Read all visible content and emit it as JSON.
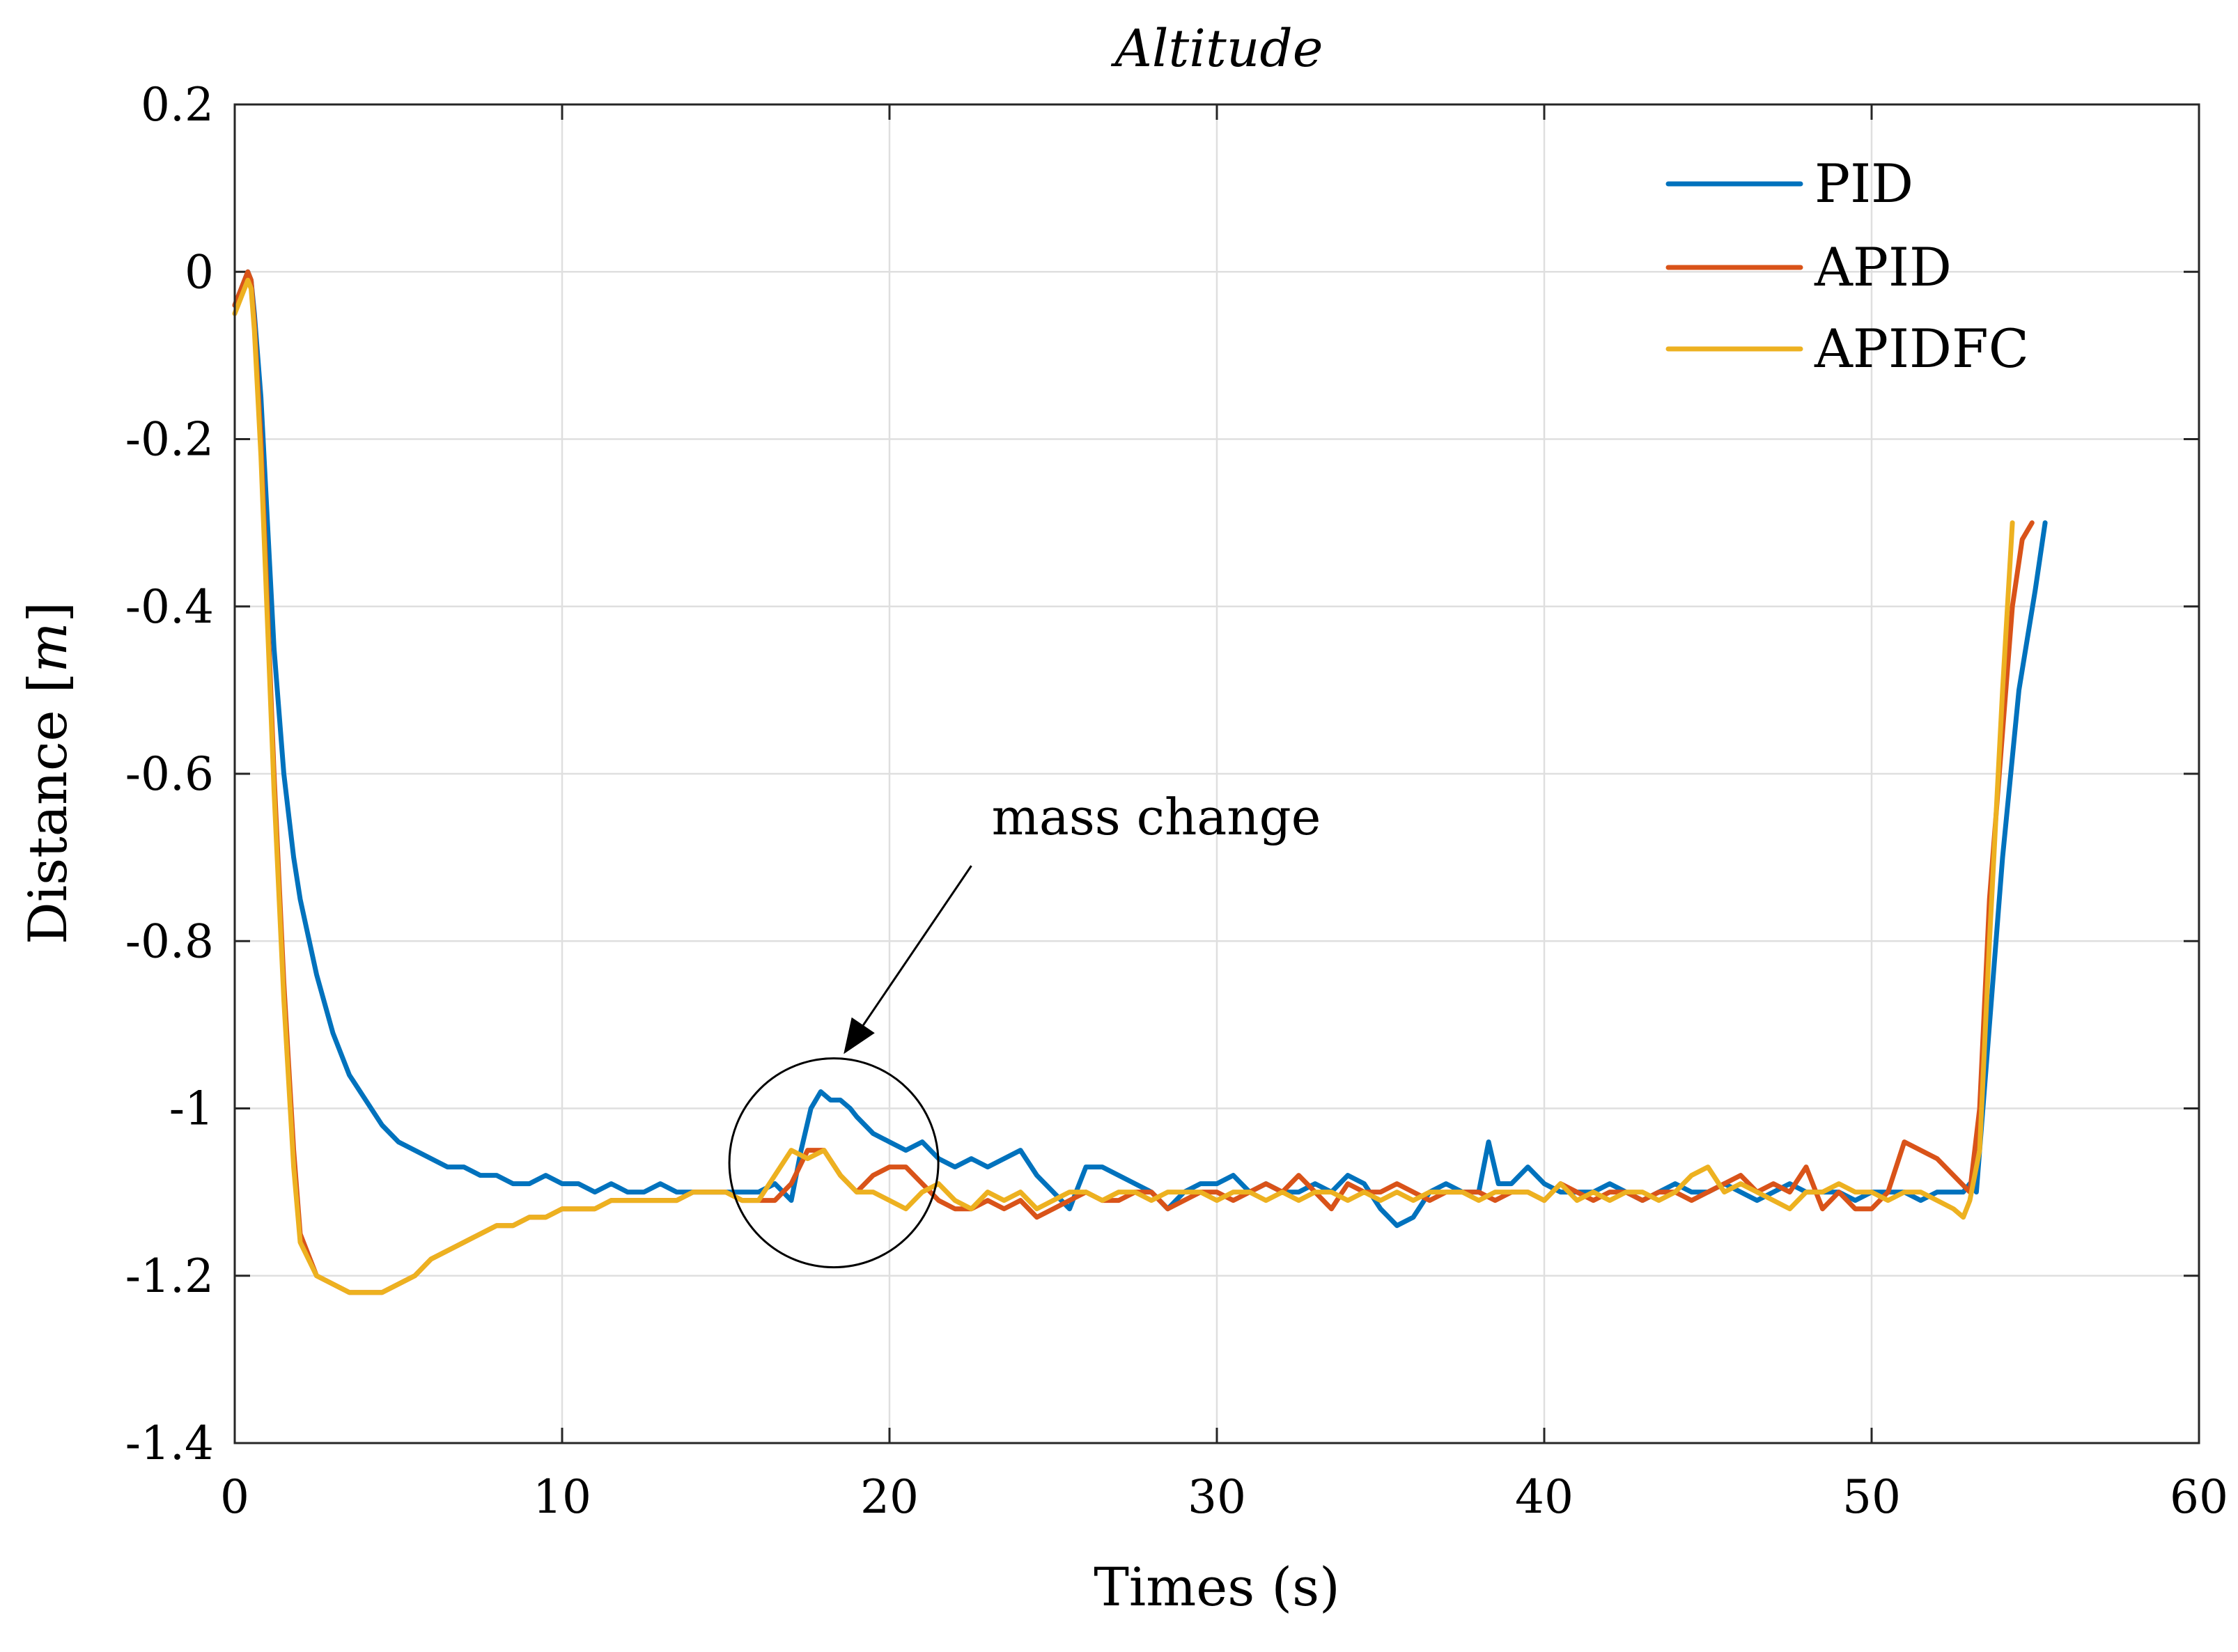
{
  "chart_data": {
    "type": "line",
    "title": "Altitude",
    "xlabel": "Times (s)",
    "ylabel_main": "Distance [",
    "ylabel_unit": "m",
    "ylabel_close": "]",
    "xlim": [
      0,
      60
    ],
    "ylim": [
      -1.4,
      0.2
    ],
    "xticks": [
      0,
      10,
      20,
      30,
      40,
      50,
      60
    ],
    "yticks": [
      0.2,
      0,
      -0.2,
      -0.4,
      -0.6,
      -0.8,
      -1,
      -1.2,
      -1.4
    ],
    "xtick_labels": [
      "0",
      "10",
      "20",
      "30",
      "40",
      "50",
      "60"
    ],
    "ytick_labels": [
      "0.2",
      "0",
      "-0.2",
      "-0.4",
      "-0.6",
      "-0.8",
      "-1",
      "-1.2",
      "-1.4"
    ],
    "grid": true,
    "legend_position": "top-right",
    "annotation": {
      "text": "mass change",
      "circle_center": [
        18.3,
        -1.065
      ],
      "arrow_tail": [
        22.5,
        -0.71
      ],
      "arrow_head": [
        18.6,
        -0.935
      ]
    },
    "series": [
      {
        "name": "PID",
        "color": "#0072BD",
        "x": [
          0,
          0.2,
          0.4,
          0.5,
          0.6,
          0.8,
          1.0,
          1.2,
          1.5,
          1.8,
          2.0,
          2.5,
          3.0,
          3.5,
          4.0,
          4.5,
          5.0,
          5.5,
          6.0,
          6.5,
          7.0,
          7.5,
          8.0,
          8.5,
          9.0,
          9.5,
          10.0,
          10.5,
          11.0,
          11.5,
          12.0,
          12.5,
          13.0,
          13.5,
          14.0,
          14.5,
          15.0,
          15.5,
          16.0,
          16.5,
          17.0,
          17.3,
          17.6,
          17.9,
          18.2,
          18.5,
          18.8,
          19.0,
          19.5,
          20.0,
          20.5,
          21.0,
          21.5,
          22.0,
          22.5,
          23.0,
          23.5,
          24.0,
          24.5,
          25.0,
          25.5,
          26.0,
          26.5,
          27.0,
          27.5,
          28.0,
          28.5,
          29.0,
          29.5,
          30.0,
          30.5,
          31.0,
          31.5,
          32.0,
          32.5,
          33.0,
          33.5,
          34.0,
          34.5,
          35.0,
          35.5,
          36.0,
          36.5,
          37.0,
          37.5,
          38.0,
          38.3,
          38.6,
          39.0,
          39.5,
          40.0,
          40.5,
          41.0,
          41.5,
          42.0,
          42.5,
          43.0,
          43.5,
          44.0,
          44.5,
          45.0,
          45.5,
          46.0,
          46.5,
          47.0,
          47.5,
          48.0,
          48.5,
          49.0,
          49.5,
          50.0,
          50.5,
          51.0,
          51.5,
          52.0,
          52.5,
          52.8,
          53.0,
          53.2,
          53.5,
          54.0,
          54.5,
          55.0,
          55.3
        ],
        "y": [
          -0.04,
          -0.02,
          0.0,
          -0.01,
          -0.05,
          -0.15,
          -0.3,
          -0.45,
          -0.6,
          -0.7,
          -0.75,
          -0.84,
          -0.91,
          -0.96,
          -0.99,
          -1.02,
          -1.04,
          -1.05,
          -1.06,
          -1.07,
          -1.07,
          -1.08,
          -1.08,
          -1.09,
          -1.09,
          -1.08,
          -1.09,
          -1.09,
          -1.1,
          -1.09,
          -1.1,
          -1.1,
          -1.09,
          -1.1,
          -1.1,
          -1.1,
          -1.1,
          -1.1,
          -1.1,
          -1.09,
          -1.11,
          -1.05,
          -1.0,
          -0.98,
          -0.99,
          -0.99,
          -1.0,
          -1.01,
          -1.03,
          -1.04,
          -1.05,
          -1.04,
          -1.06,
          -1.07,
          -1.06,
          -1.07,
          -1.06,
          -1.05,
          -1.08,
          -1.1,
          -1.12,
          -1.07,
          -1.07,
          -1.08,
          -1.09,
          -1.1,
          -1.12,
          -1.1,
          -1.09,
          -1.09,
          -1.08,
          -1.1,
          -1.09,
          -1.1,
          -1.1,
          -1.09,
          -1.1,
          -1.08,
          -1.09,
          -1.12,
          -1.14,
          -1.13,
          -1.1,
          -1.09,
          -1.1,
          -1.1,
          -1.04,
          -1.09,
          -1.09,
          -1.07,
          -1.09,
          -1.1,
          -1.1,
          -1.1,
          -1.09,
          -1.1,
          -1.11,
          -1.1,
          -1.09,
          -1.1,
          -1.1,
          -1.09,
          -1.1,
          -1.11,
          -1.1,
          -1.09,
          -1.1,
          -1.1,
          -1.1,
          -1.11,
          -1.1,
          -1.1,
          -1.1,
          -1.11,
          -1.1,
          -1.1,
          -1.1,
          -1.09,
          -1.1,
          -0.95,
          -0.7,
          -0.5,
          -0.38,
          -0.3
        ]
      },
      {
        "name": "APID",
        "color": "#D95319",
        "x": [
          0,
          0.2,
          0.4,
          0.5,
          0.6,
          0.8,
          1.0,
          1.2,
          1.5,
          1.8,
          2.0,
          2.5,
          3.0,
          3.5,
          4.0,
          4.5,
          5.0,
          5.5,
          6.0,
          6.5,
          7.0,
          7.5,
          8.0,
          8.5,
          9.0,
          9.5,
          10.0,
          10.5,
          11.0,
          11.5,
          12.0,
          12.5,
          13.0,
          13.5,
          14.0,
          14.5,
          15.0,
          15.5,
          16.0,
          16.5,
          17.0,
          17.5,
          18.0,
          18.5,
          19.0,
          19.5,
          20.0,
          20.5,
          21.0,
          21.5,
          22.0,
          22.5,
          23.0,
          23.5,
          24.0,
          24.5,
          25.0,
          25.5,
          26.0,
          26.5,
          27.0,
          27.5,
          28.0,
          28.5,
          29.0,
          29.5,
          30.0,
          30.5,
          31.0,
          31.5,
          32.0,
          32.5,
          33.0,
          33.5,
          34.0,
          34.5,
          35.0,
          35.5,
          36.0,
          36.5,
          37.0,
          37.5,
          38.0,
          38.5,
          39.0,
          39.5,
          40.0,
          40.5,
          41.0,
          41.5,
          42.0,
          42.5,
          43.0,
          43.5,
          44.0,
          44.5,
          45.0,
          45.5,
          46.0,
          46.5,
          47.0,
          47.5,
          48.0,
          48.5,
          49.0,
          49.5,
          50.0,
          50.5,
          51.0,
          51.5,
          52.0,
          52.5,
          53.0,
          53.3,
          53.6,
          54.0,
          54.3,
          54.6,
          54.9
        ],
        "y": [
          -0.04,
          -0.02,
          0.0,
          -0.01,
          -0.06,
          -0.2,
          -0.4,
          -0.6,
          -0.85,
          -1.05,
          -1.15,
          -1.2,
          -1.21,
          -1.22,
          -1.22,
          -1.22,
          -1.21,
          -1.2,
          -1.18,
          -1.17,
          -1.16,
          -1.15,
          -1.14,
          -1.14,
          -1.13,
          -1.13,
          -1.12,
          -1.12,
          -1.12,
          -1.11,
          -1.11,
          -1.11,
          -1.11,
          -1.11,
          -1.1,
          -1.1,
          -1.1,
          -1.11,
          -1.11,
          -1.11,
          -1.09,
          -1.05,
          -1.05,
          -1.08,
          -1.1,
          -1.08,
          -1.07,
          -1.07,
          -1.09,
          -1.11,
          -1.12,
          -1.12,
          -1.11,
          -1.12,
          -1.11,
          -1.13,
          -1.12,
          -1.11,
          -1.1,
          -1.11,
          -1.11,
          -1.1,
          -1.1,
          -1.12,
          -1.11,
          -1.1,
          -1.1,
          -1.11,
          -1.1,
          -1.09,
          -1.1,
          -1.08,
          -1.1,
          -1.12,
          -1.09,
          -1.1,
          -1.1,
          -1.09,
          -1.1,
          -1.11,
          -1.1,
          -1.1,
          -1.1,
          -1.11,
          -1.1,
          -1.1,
          -1.11,
          -1.09,
          -1.1,
          -1.11,
          -1.1,
          -1.1,
          -1.11,
          -1.1,
          -1.1,
          -1.11,
          -1.1,
          -1.09,
          -1.08,
          -1.1,
          -1.09,
          -1.1,
          -1.07,
          -1.12,
          -1.1,
          -1.12,
          -1.12,
          -1.1,
          -1.04,
          -1.05,
          -1.06,
          -1.08,
          -1.1,
          -1.0,
          -0.75,
          -0.55,
          -0.4,
          -0.32,
          -0.3
        ]
      },
      {
        "name": "APIDFC",
        "color": "#EDB120",
        "x": [
          0,
          0.2,
          0.4,
          0.5,
          0.6,
          0.8,
          1.0,
          1.2,
          1.5,
          1.8,
          2.0,
          2.5,
          3.0,
          3.5,
          4.0,
          4.5,
          5.0,
          5.5,
          6.0,
          6.5,
          7.0,
          7.5,
          8.0,
          8.5,
          9.0,
          9.5,
          10.0,
          10.5,
          11.0,
          11.5,
          12.0,
          12.5,
          13.0,
          13.5,
          14.0,
          14.5,
          15.0,
          15.5,
          16.0,
          16.5,
          17.0,
          17.5,
          18.0,
          18.5,
          19.0,
          19.5,
          20.0,
          20.5,
          21.0,
          21.5,
          22.0,
          22.5,
          23.0,
          23.5,
          24.0,
          24.5,
          25.0,
          25.5,
          26.0,
          26.5,
          27.0,
          27.5,
          28.0,
          28.5,
          29.0,
          29.5,
          30.0,
          30.5,
          31.0,
          31.5,
          32.0,
          32.5,
          33.0,
          33.5,
          34.0,
          34.5,
          35.0,
          35.5,
          36.0,
          36.5,
          37.0,
          37.5,
          38.0,
          38.5,
          39.0,
          39.5,
          40.0,
          40.5,
          41.0,
          41.5,
          42.0,
          42.5,
          43.0,
          43.5,
          44.0,
          44.5,
          45.0,
          45.5,
          46.0,
          46.5,
          47.0,
          47.5,
          48.0,
          48.5,
          49.0,
          49.5,
          50.0,
          50.5,
          51.0,
          51.5,
          52.0,
          52.5,
          52.8,
          53.0,
          53.3,
          53.6,
          54.0,
          54.3
        ],
        "y": [
          -0.05,
          -0.03,
          -0.01,
          -0.02,
          -0.07,
          -0.22,
          -0.42,
          -0.62,
          -0.87,
          -1.07,
          -1.16,
          -1.2,
          -1.21,
          -1.22,
          -1.22,
          -1.22,
          -1.21,
          -1.2,
          -1.18,
          -1.17,
          -1.16,
          -1.15,
          -1.14,
          -1.14,
          -1.13,
          -1.13,
          -1.12,
          -1.12,
          -1.12,
          -1.11,
          -1.11,
          -1.11,
          -1.11,
          -1.11,
          -1.1,
          -1.1,
          -1.1,
          -1.11,
          -1.11,
          -1.08,
          -1.05,
          -1.06,
          -1.05,
          -1.08,
          -1.1,
          -1.1,
          -1.11,
          -1.12,
          -1.1,
          -1.09,
          -1.11,
          -1.12,
          -1.1,
          -1.11,
          -1.1,
          -1.12,
          -1.11,
          -1.1,
          -1.1,
          -1.11,
          -1.1,
          -1.1,
          -1.11,
          -1.1,
          -1.1,
          -1.1,
          -1.11,
          -1.1,
          -1.1,
          -1.11,
          -1.1,
          -1.11,
          -1.1,
          -1.1,
          -1.11,
          -1.1,
          -1.11,
          -1.1,
          -1.11,
          -1.1,
          -1.1,
          -1.1,
          -1.11,
          -1.1,
          -1.1,
          -1.1,
          -1.11,
          -1.09,
          -1.11,
          -1.1,
          -1.11,
          -1.1,
          -1.1,
          -1.11,
          -1.1,
          -1.08,
          -1.07,
          -1.1,
          -1.09,
          -1.1,
          -1.11,
          -1.12,
          -1.1,
          -1.1,
          -1.09,
          -1.1,
          -1.1,
          -1.11,
          -1.1,
          -1.1,
          -1.11,
          -1.12,
          -1.13,
          -1.11,
          -1.05,
          -0.8,
          -0.5,
          -0.3
        ]
      }
    ]
  }
}
